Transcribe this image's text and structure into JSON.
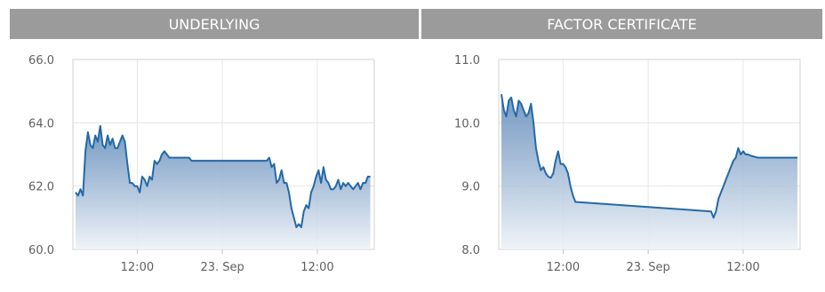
{
  "panels": {
    "underlying": {
      "title": "UNDERLYING"
    },
    "factor": {
      "title": "FACTOR CERTIFICATE"
    }
  },
  "colors": {
    "header_bg": "#9b9b9b",
    "line": "#2469a6",
    "fill_top": "#5c87b8",
    "fill_bottom": "#eef2f7"
  },
  "chart_data": [
    {
      "type": "area",
      "title": "",
      "xlabel": "",
      "ylabel": "",
      "grid": true,
      "ylim": [
        60.0,
        66.0
      ],
      "y_ticks": [
        "60.0",
        "62.0",
        "64.0",
        "66.0"
      ],
      "xlim": [
        0.0,
        2.4
      ],
      "x_ticks": [
        {
          "label": "12:00",
          "x": 0.5
        },
        {
          "label": "23. Sep",
          "x": 1.19
        },
        {
          "label": "12:00",
          "x": 1.96
        }
      ],
      "series": [
        {
          "x": [
            0.0,
            0.02,
            0.04,
            0.06,
            0.08,
            0.1,
            0.12,
            0.14,
            0.16,
            0.18,
            0.2,
            0.22,
            0.24,
            0.26,
            0.28,
            0.3,
            0.32,
            0.34,
            0.36,
            0.38,
            0.4,
            0.42,
            0.44,
            0.46,
            0.48,
            0.5,
            0.52,
            0.54,
            0.56,
            0.58,
            0.6,
            0.62,
            0.64,
            0.66,
            0.68,
            0.7,
            0.72,
            0.74,
            0.76,
            0.78,
            0.8,
            0.82,
            0.84,
            0.86,
            0.88,
            0.9,
            0.92,
            0.94,
            1.55,
            1.57,
            1.59,
            1.61,
            1.63,
            1.65,
            1.67,
            1.69,
            1.71,
            1.73,
            1.75,
            1.77,
            1.79,
            1.81,
            1.83,
            1.85,
            1.87,
            1.89,
            1.91,
            1.93,
            1.95,
            1.97,
            1.99,
            2.01,
            2.03,
            2.05,
            2.07,
            2.09,
            2.11,
            2.13,
            2.15,
            2.17,
            2.19,
            2.21,
            2.23,
            2.25,
            2.27,
            2.29,
            2.31,
            2.33,
            2.35,
            2.37,
            2.39
          ],
          "values": [
            61.8,
            61.7,
            61.9,
            61.7,
            63.1,
            63.7,
            63.3,
            63.2,
            63.6,
            63.4,
            63.9,
            63.3,
            63.2,
            63.6,
            63.3,
            63.5,
            63.2,
            63.2,
            63.4,
            63.6,
            63.4,
            62.7,
            62.1,
            62.1,
            62.0,
            62.0,
            61.8,
            62.3,
            62.2,
            62.0,
            62.3,
            62.2,
            62.8,
            62.7,
            62.8,
            63.0,
            63.1,
            63.0,
            62.9,
            62.9,
            62.9,
            62.9,
            62.9,
            62.9,
            62.9,
            62.9,
            62.9,
            62.8,
            62.8,
            62.9,
            62.6,
            62.7,
            62.1,
            62.2,
            62.5,
            62.1,
            62.1,
            61.8,
            61.3,
            61.0,
            60.7,
            60.8,
            60.7,
            61.2,
            61.4,
            61.3,
            61.8,
            62.0,
            62.3,
            62.5,
            62.1,
            62.6,
            62.2,
            62.1,
            61.9,
            61.9,
            62.0,
            62.2,
            61.9,
            62.1,
            62.0,
            62.1,
            62.0,
            61.9,
            62.0,
            62.1,
            61.9,
            62.1,
            62.1,
            62.3,
            62.3
          ]
        }
      ]
    },
    {
      "type": "area",
      "title": "",
      "xlabel": "",
      "ylabel": "",
      "grid": true,
      "ylim": [
        8.0,
        11.0
      ],
      "y_ticks": [
        "8.0",
        "9.0",
        "10.0",
        "11.0"
      ],
      "xlim": [
        0.0,
        2.4
      ],
      "x_ticks": [
        {
          "label": "12:00",
          "x": 0.5
        },
        {
          "label": "23. Sep",
          "x": 1.19
        },
        {
          "label": "12:00",
          "x": 1.96
        }
      ],
      "series": [
        {
          "x": [
            0.0,
            0.02,
            0.04,
            0.06,
            0.08,
            0.1,
            0.12,
            0.14,
            0.16,
            0.18,
            0.2,
            0.22,
            0.24,
            0.26,
            0.28,
            0.3,
            0.32,
            0.34,
            0.36,
            0.38,
            0.4,
            0.42,
            0.44,
            0.46,
            0.48,
            0.5,
            0.52,
            0.54,
            0.56,
            0.58,
            0.6,
            1.7,
            1.72,
            1.74,
            1.76,
            1.78,
            1.8,
            1.82,
            1.84,
            1.86,
            1.88,
            1.9,
            1.92,
            1.94,
            1.96,
            1.98,
            2.0,
            2.02,
            2.04,
            2.06,
            2.08,
            2.1,
            2.12,
            2.14,
            2.16,
            2.18,
            2.2,
            2.22,
            2.24,
            2.26,
            2.28,
            2.3,
            2.32,
            2.34,
            2.36,
            2.38,
            2.4
          ],
          "values": [
            10.45,
            10.2,
            10.1,
            10.35,
            10.4,
            10.2,
            10.1,
            10.35,
            10.3,
            10.2,
            10.1,
            10.15,
            10.3,
            10.0,
            9.6,
            9.4,
            9.25,
            9.3,
            9.2,
            9.15,
            9.13,
            9.2,
            9.4,
            9.55,
            9.35,
            9.35,
            9.3,
            9.2,
            9.0,
            8.85,
            8.75,
            8.6,
            8.5,
            8.6,
            8.8,
            8.9,
            9.0,
            9.1,
            9.2,
            9.3,
            9.4,
            9.45,
            9.6,
            9.5,
            9.55,
            9.5,
            9.5,
            9.48,
            9.47,
            9.46,
            9.45,
            9.45,
            9.45,
            9.45,
            9.45,
            9.45,
            9.45,
            9.45,
            9.45,
            9.45,
            9.45,
            9.45,
            9.45,
            9.45,
            9.45,
            9.45,
            9.45
          ]
        }
      ]
    }
  ]
}
